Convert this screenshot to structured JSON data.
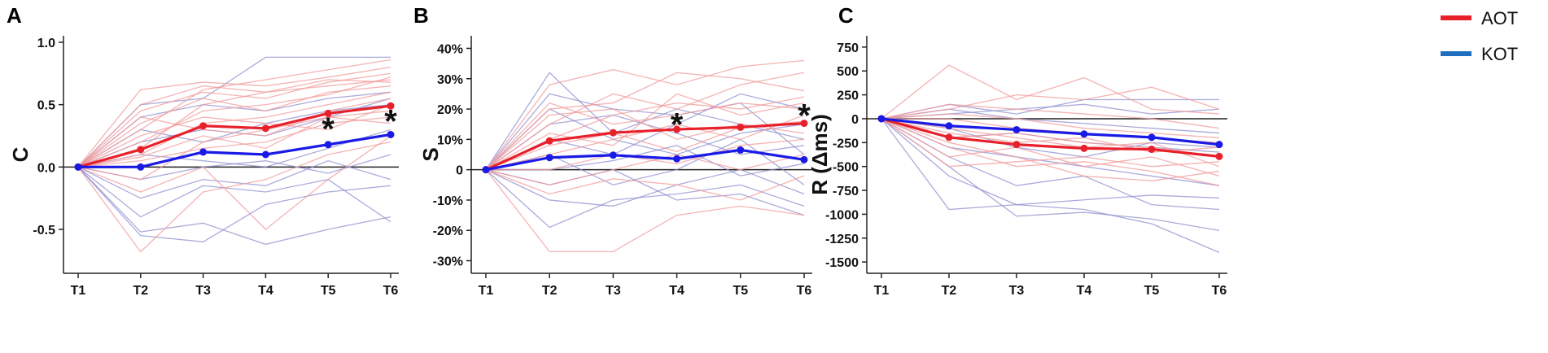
{
  "legend": [
    {
      "label": "AOT",
      "color": "#e8202a"
    },
    {
      "label": "KOT",
      "color": "#1f6fc0"
    }
  ],
  "colors": {
    "aot_mean": "#e8202a",
    "kot_mean": "#1a1ae6",
    "aot_individual": "#f29a9a",
    "kot_individual": "#8f8fd0",
    "zero_line": "#222222"
  },
  "chart_data": [
    {
      "panel": "A",
      "type": "line",
      "ylabel": "C",
      "x": [
        "T1",
        "T2",
        "T3",
        "T4",
        "T5",
        "T6"
      ],
      "ylim": [
        -0.8,
        1.0
      ],
      "yticks": [
        -0.5,
        0.0,
        0.5,
        1.0
      ],
      "ytick_labels": [
        "-0.5",
        "0.0",
        "0.5",
        "1.0"
      ],
      "series": [
        {
          "name": "AOT",
          "values": [
            0,
            0.14,
            0.33,
            0.31,
            0.43,
            0.49
          ]
        },
        {
          "name": "KOT",
          "values": [
            0,
            0.0,
            0.12,
            0.1,
            0.18,
            0.26
          ]
        }
      ],
      "individual": {
        "AOT": [
          [
            0,
            0.62,
            0.68,
            0.65,
            0.72,
            0.8
          ],
          [
            0,
            0.45,
            0.6,
            0.55,
            0.68,
            0.75
          ],
          [
            0,
            0.3,
            0.62,
            0.7,
            0.78,
            0.86
          ],
          [
            0,
            0.2,
            0.45,
            0.5,
            0.58,
            0.72
          ],
          [
            0,
            0.1,
            0.35,
            0.4,
            0.5,
            0.6
          ],
          [
            0,
            0.35,
            0.55,
            0.45,
            0.6,
            0.65
          ],
          [
            0,
            -0.1,
            0.2,
            0.3,
            0.4,
            0.45
          ],
          [
            0,
            0.25,
            0.4,
            0.35,
            0.3,
            0.5
          ],
          [
            0,
            -0.68,
            -0.2,
            -0.1,
            0.1,
            0.2
          ],
          [
            0,
            0.05,
            0.15,
            0.2,
            0.35,
            0.4
          ],
          [
            0,
            0.15,
            0.5,
            0.6,
            0.65,
            0.7
          ],
          [
            0,
            -0.2,
            0.0,
            -0.5,
            -0.1,
            0.25
          ],
          [
            0,
            0.4,
            0.3,
            0.25,
            0.45,
            0.55
          ],
          [
            0,
            0.08,
            0.25,
            0.15,
            0.4,
            0.35
          ],
          [
            0,
            0.5,
            0.65,
            0.6,
            0.7,
            0.68
          ]
        ],
        "KOT": [
          [
            0,
            0.5,
            0.55,
            0.88,
            0.88,
            0.88
          ],
          [
            0,
            -0.55,
            -0.6,
            -0.3,
            -0.2,
            -0.15
          ],
          [
            0,
            -0.52,
            -0.45,
            -0.62,
            -0.5,
            -0.4
          ],
          [
            0,
            -0.4,
            -0.15,
            -0.2,
            -0.1,
            -0.44
          ],
          [
            0,
            0.2,
            0.3,
            0.25,
            0.4,
            0.55
          ],
          [
            0,
            0.1,
            0.05,
            0.0,
            0.15,
            0.3
          ],
          [
            0,
            -0.25,
            -0.1,
            -0.15,
            0.05,
            -0.1
          ],
          [
            0,
            0.4,
            0.5,
            0.45,
            0.55,
            0.6
          ],
          [
            0,
            0.3,
            0.2,
            0.35,
            0.45,
            0.5
          ],
          [
            0,
            -0.1,
            0.0,
            0.05,
            -0.05,
            0.1
          ]
        ]
      },
      "annotations": [
        {
          "x": "T5",
          "y": 0.31,
          "text": "*"
        },
        {
          "x": "T6",
          "y": 0.37,
          "text": "*"
        }
      ]
    },
    {
      "panel": "B",
      "type": "line",
      "ylabel": "S",
      "x": [
        "T1",
        "T2",
        "T3",
        "T4",
        "T5",
        "T6"
      ],
      "ylim": [
        -32,
        42
      ],
      "yticks": [
        -30,
        -20,
        -10,
        0,
        10,
        20,
        30,
        40
      ],
      "ytick_labels": [
        "-30%",
        "-20%",
        "-10%",
        "0",
        "10%",
        "20%",
        "30%",
        "40%"
      ],
      "series": [
        {
          "name": "AOT",
          "values": [
            0,
            9.5,
            12.2,
            13.3,
            14.0,
            15.3
          ]
        },
        {
          "name": "KOT",
          "values": [
            0,
            4.0,
            4.8,
            3.6,
            6.5,
            3.3
          ]
        }
      ],
      "individual": {
        "AOT": [
          [
            0,
            28,
            33,
            28,
            34,
            36
          ],
          [
            0,
            20,
            22,
            32,
            30,
            26
          ],
          [
            0,
            15,
            25,
            20,
            28,
            32
          ],
          [
            0,
            10,
            18,
            22,
            20,
            24
          ],
          [
            0,
            -27,
            -27,
            -15,
            -12,
            -15
          ],
          [
            0,
            5,
            10,
            15,
            10,
            18
          ],
          [
            0,
            0,
            5,
            2,
            8,
            10
          ],
          [
            0,
            22,
            15,
            18,
            22,
            20
          ],
          [
            0,
            -5,
            0,
            5,
            0,
            5
          ],
          [
            0,
            12,
            8,
            25,
            18,
            22
          ],
          [
            0,
            18,
            20,
            10,
            15,
            12
          ],
          [
            0,
            -8,
            -3,
            -5,
            -10,
            -2
          ],
          [
            0,
            8,
            12,
            6,
            14,
            16
          ]
        ],
        "KOT": [
          [
            0,
            32,
            12,
            20,
            15,
            10
          ],
          [
            0,
            -19,
            -10,
            -8,
            -5,
            -12
          ],
          [
            0,
            25,
            20,
            18,
            22,
            5
          ],
          [
            0,
            10,
            5,
            15,
            25,
            20
          ],
          [
            0,
            5,
            -5,
            0,
            10,
            -5
          ],
          [
            0,
            -5,
            0,
            -10,
            -8,
            -15
          ],
          [
            0,
            15,
            18,
            12,
            5,
            8
          ],
          [
            0,
            -10,
            -12,
            -5,
            0,
            -8
          ],
          [
            0,
            0,
            3,
            8,
            -2,
            2
          ],
          [
            0,
            20,
            10,
            5,
            12,
            15
          ]
        ]
      },
      "annotations": [
        {
          "x": "T4",
          "y": 15,
          "text": "*"
        },
        {
          "x": "T6",
          "y": 18,
          "text": "*"
        }
      ]
    },
    {
      "panel": "C",
      "type": "line",
      "ylabel": "R  (Δms)",
      "x": [
        "T1",
        "T2",
        "T3",
        "T4",
        "T5",
        "T6"
      ],
      "ylim": [
        -1550,
        800
      ],
      "yticks": [
        -1500,
        -1250,
        -1000,
        -750,
        -500,
        -250,
        0,
        250,
        500,
        750
      ],
      "ytick_labels": [
        "-1500",
        "-1250",
        "-1000",
        "-750",
        "-500",
        "-250",
        "0",
        "250",
        "500",
        "750"
      ],
      "series": [
        {
          "name": "AOT",
          "values": [
            0,
            -195,
            -270,
            -310,
            -320,
            -395
          ]
        },
        {
          "name": "KOT",
          "values": [
            0,
            -75,
            -115,
            -160,
            -195,
            -270
          ]
        }
      ],
      "individual": {
        "AOT": [
          [
            0,
            560,
            200,
            430,
            100,
            50
          ],
          [
            0,
            100,
            250,
            200,
            330,
            100
          ],
          [
            0,
            -100,
            -200,
            -300,
            -250,
            -500
          ],
          [
            0,
            -300,
            -500,
            -450,
            -550,
            -700
          ],
          [
            0,
            -200,
            -150,
            -250,
            -300,
            -400
          ],
          [
            0,
            50,
            0,
            -100,
            -150,
            -200
          ],
          [
            0,
            -400,
            -300,
            -500,
            -400,
            -600
          ],
          [
            0,
            -150,
            -250,
            -200,
            -350,
            -300
          ],
          [
            0,
            0,
            -100,
            -150,
            -200,
            -250
          ],
          [
            0,
            -250,
            -400,
            -600,
            -650,
            -550
          ],
          [
            0,
            150,
            100,
            50,
            0,
            -100
          ],
          [
            0,
            -500,
            -450,
            -400,
            -500,
            -450
          ]
        ],
        "KOT": [
          [
            0,
            -950,
            -900,
            -950,
            -1100,
            -1400
          ],
          [
            0,
            -500,
            -1020,
            -980,
            -1050,
            -1170
          ],
          [
            0,
            -600,
            -900,
            -850,
            -800,
            -830
          ],
          [
            0,
            150,
            50,
            200,
            200,
            200
          ],
          [
            0,
            -300,
            -400,
            -500,
            -600,
            -700
          ],
          [
            0,
            100,
            0,
            -50,
            -100,
            -150
          ],
          [
            0,
            -200,
            -150,
            -250,
            -300,
            -350
          ],
          [
            0,
            -400,
            -700,
            -600,
            -900,
            -950
          ],
          [
            0,
            50,
            100,
            150,
            50,
            100
          ],
          [
            0,
            -100,
            -300,
            -400,
            -250,
            -300
          ]
        ]
      },
      "annotations": []
    }
  ]
}
